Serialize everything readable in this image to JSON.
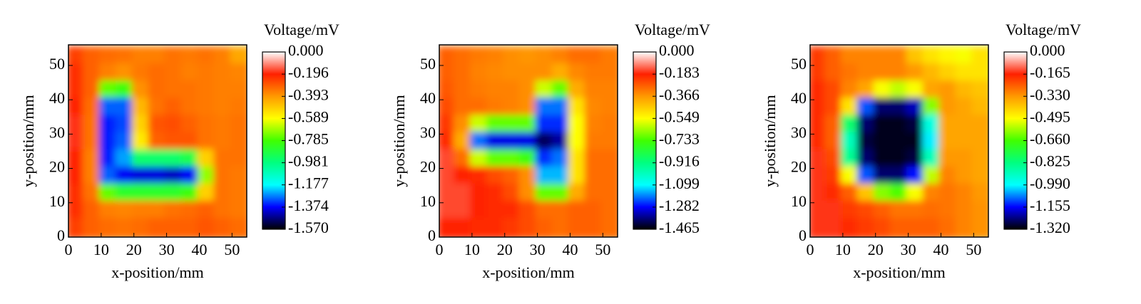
{
  "chart_data": [
    {
      "type": "heatmap",
      "xlabel": "x-position/mm",
      "ylabel": "y-position/mm",
      "colorbar_label": "Voltage/mV",
      "xlim": [
        0,
        54.5
      ],
      "ylim": [
        0,
        56
      ],
      "xticks": [
        0,
        10,
        20,
        30,
        40,
        50
      ],
      "yticks": [
        0,
        10,
        20,
        30,
        40,
        50
      ],
      "zlim": [
        -1.57,
        0
      ],
      "zticks": [
        {
          "value": 0,
          "label": "0.000"
        },
        -0.196,
        -0.393,
        -0.589,
        -0.785,
        -0.981,
        -1.177,
        -1.374,
        {
          "value": -1.57,
          "label": "-1.570"
        }
      ],
      "colormap": [
        "#000000",
        "#0000ff",
        "#00ffff",
        "#00ff80",
        "#40ff00",
        "#ffff00",
        "#ff9900",
        "#ff2000",
        "#ffffff"
      ],
      "x": [
        2.5,
        7.5,
        12.5,
        17.5,
        22.5,
        27.5,
        32.5,
        37.5,
        42.5,
        47.5,
        52.5
      ],
      "y": [
        52.5,
        47.5,
        42.5,
        37.5,
        32.5,
        27.5,
        22.5,
        17.5,
        12.5,
        7.5,
        2.5
      ],
      "z": [
        [
          -0.25,
          -0.3,
          -0.32,
          -0.33,
          -0.35,
          -0.35,
          -0.33,
          -0.34,
          -0.33,
          -0.35,
          -0.42
        ],
        [
          -0.22,
          -0.3,
          -0.35,
          -0.38,
          -0.34,
          -0.32,
          -0.33,
          -0.35,
          -0.34,
          -0.35,
          -0.36
        ],
        [
          -0.22,
          -0.3,
          -0.75,
          -0.8,
          -0.38,
          -0.32,
          -0.33,
          -0.33,
          -0.34,
          -0.35,
          -0.35
        ],
        [
          -0.2,
          -0.32,
          -1.3,
          -1.3,
          -0.45,
          -0.33,
          -0.3,
          -0.33,
          -0.34,
          -0.35,
          -0.34
        ],
        [
          -0.18,
          -0.33,
          -1.35,
          -1.32,
          -0.5,
          -0.28,
          -0.27,
          -0.3,
          -0.33,
          -0.34,
          -0.33
        ],
        [
          -0.18,
          -0.33,
          -1.35,
          -1.3,
          -0.55,
          -0.3,
          -0.28,
          -0.28,
          -0.33,
          -0.34,
          -0.33
        ],
        [
          -0.2,
          -0.35,
          -1.35,
          -1.25,
          -0.95,
          -0.95,
          -0.95,
          -0.9,
          -0.5,
          -0.33,
          -0.33
        ],
        [
          -0.2,
          -0.35,
          -1.3,
          -1.38,
          -1.4,
          -1.4,
          -1.42,
          -1.38,
          -0.7,
          -0.33,
          -0.34
        ],
        [
          -0.22,
          -0.33,
          -0.75,
          -0.85,
          -0.85,
          -0.85,
          -0.85,
          -0.8,
          -0.5,
          -0.33,
          -0.34
        ],
        [
          -0.22,
          -0.3,
          -0.35,
          -0.36,
          -0.35,
          -0.35,
          -0.33,
          -0.32,
          -0.3,
          -0.33,
          -0.34
        ],
        [
          -0.25,
          -0.3,
          -0.32,
          -0.33,
          -0.32,
          -0.3,
          -0.3,
          -0.3,
          -0.28,
          -0.3,
          -0.32
        ]
      ]
    },
    {
      "type": "heatmap",
      "xlabel": "x-position/mm",
      "ylabel": "y-position/mm",
      "colorbar_label": "Voltage/mV",
      "xlim": [
        0,
        54.5
      ],
      "ylim": [
        0,
        56
      ],
      "xticks": [
        0,
        10,
        20,
        30,
        40,
        50
      ],
      "yticks": [
        0,
        10,
        20,
        30,
        40,
        50
      ],
      "zlim": [
        -1.465,
        0
      ],
      "zticks": [
        {
          "value": 0,
          "label": "0.000"
        },
        -0.183,
        -0.366,
        -0.549,
        -0.733,
        -0.916,
        -1.099,
        -1.282,
        -1.465
      ],
      "colormap": [
        "#000000",
        "#0000ff",
        "#00ffff",
        "#00ff80",
        "#40ff00",
        "#ffff00",
        "#ff9900",
        "#ff2000",
        "#ffffff"
      ],
      "x": [
        2.5,
        7.5,
        12.5,
        17.5,
        22.5,
        27.5,
        32.5,
        37.5,
        42.5,
        47.5,
        52.5
      ],
      "y": [
        52.5,
        47.5,
        42.5,
        37.5,
        32.5,
        27.5,
        22.5,
        17.5,
        12.5,
        7.5,
        2.5
      ],
      "z": [
        [
          -0.28,
          -0.3,
          -0.32,
          -0.33,
          -0.35,
          -0.36,
          -0.35,
          -0.33,
          -0.3,
          -0.3,
          -0.32
        ],
        [
          -0.28,
          -0.3,
          -0.33,
          -0.34,
          -0.35,
          -0.35,
          -0.35,
          -0.4,
          -0.34,
          -0.32,
          -0.32
        ],
        [
          -0.27,
          -0.3,
          -0.32,
          -0.33,
          -0.33,
          -0.35,
          -0.6,
          -0.7,
          -0.4,
          -0.33,
          -0.33
        ],
        [
          -0.25,
          -0.3,
          -0.3,
          -0.32,
          -0.33,
          -0.35,
          -1.2,
          -1.2,
          -0.5,
          -0.34,
          -0.33
        ],
        [
          -0.22,
          -0.35,
          -0.6,
          -0.7,
          -0.7,
          -0.7,
          -1.25,
          -1.25,
          -0.55,
          -0.33,
          -0.32
        ],
        [
          -0.2,
          -0.4,
          -1.2,
          -1.3,
          -1.3,
          -1.3,
          -1.4,
          -1.35,
          -0.55,
          -0.32,
          -0.32
        ],
        [
          -0.15,
          -0.3,
          -0.6,
          -0.7,
          -0.7,
          -0.75,
          -1.25,
          -1.2,
          -0.5,
          -0.3,
          -0.3
        ],
        [
          -0.15,
          -0.18,
          -0.2,
          -0.25,
          -0.28,
          -0.35,
          -1.15,
          -1.15,
          -0.5,
          -0.3,
          -0.3
        ],
        [
          -0.15,
          -0.15,
          -0.18,
          -0.2,
          -0.25,
          -0.35,
          -0.7,
          -0.7,
          -0.4,
          -0.3,
          -0.3
        ],
        [
          -0.15,
          -0.15,
          -0.18,
          -0.2,
          -0.2,
          -0.25,
          -0.3,
          -0.3,
          -0.28,
          -0.28,
          -0.3
        ],
        [
          -0.18,
          -0.18,
          -0.2,
          -0.2,
          -0.22,
          -0.25,
          -0.28,
          -0.3,
          -0.28,
          -0.28,
          -0.3
        ]
      ]
    },
    {
      "type": "heatmap",
      "xlabel": "x-position/mm",
      "ylabel": "y-position/mm",
      "colorbar_label": "Voltage/mV",
      "xlim": [
        0,
        54.5
      ],
      "ylim": [
        0,
        56
      ],
      "xticks": [
        0,
        10,
        20,
        30,
        40,
        50
      ],
      "yticks": [
        0,
        10,
        20,
        30,
        40,
        50
      ],
      "zlim": [
        -1.32,
        0
      ],
      "zticks": [
        {
          "value": 0,
          "label": "0.000"
        },
        -0.165,
        {
          "value": -0.33,
          "label": "-0.330"
        },
        -0.495,
        {
          "value": -0.66,
          "label": "-0.660"
        },
        -0.825,
        {
          "value": -0.99,
          "label": "-0.990"
        },
        -1.155,
        {
          "value": -1.32,
          "label": "-1.320"
        }
      ],
      "colormap": [
        "#000000",
        "#0000ff",
        "#00ffff",
        "#00ff80",
        "#40ff00",
        "#ffff00",
        "#ff9900",
        "#ff2000",
        "#ffffff"
      ],
      "x": [
        2.5,
        7.5,
        12.5,
        17.5,
        22.5,
        27.5,
        32.5,
        37.5,
        42.5,
        47.5,
        52.5
      ],
      "y": [
        52.5,
        47.5,
        42.5,
        37.5,
        32.5,
        27.5,
        22.5,
        17.5,
        12.5,
        7.5,
        2.5
      ],
      "z": [
        [
          -0.2,
          -0.25,
          -0.3,
          -0.3,
          -0.3,
          -0.3,
          -0.4,
          -0.45,
          -0.48,
          -0.5,
          -0.45
        ],
        [
          -0.2,
          -0.25,
          -0.28,
          -0.3,
          -0.3,
          -0.3,
          -0.33,
          -0.38,
          -0.42,
          -0.45,
          -0.45
        ],
        [
          -0.18,
          -0.22,
          -0.3,
          -0.35,
          -0.5,
          -0.55,
          -0.5,
          -0.35,
          -0.33,
          -0.38,
          -0.4
        ],
        [
          -0.18,
          -0.22,
          -0.45,
          -1.1,
          -1.25,
          -1.25,
          -1.2,
          -0.6,
          -0.33,
          -0.35,
          -0.38
        ],
        [
          -0.18,
          -0.25,
          -0.8,
          -1.25,
          -1.3,
          -1.3,
          -1.28,
          -0.95,
          -0.35,
          -0.35,
          -0.35
        ],
        [
          -0.18,
          -0.25,
          -0.9,
          -1.28,
          -1.3,
          -1.3,
          -1.3,
          -1.0,
          -0.35,
          -0.35,
          -0.35
        ],
        [
          -0.15,
          -0.22,
          -0.85,
          -1.25,
          -1.3,
          -1.3,
          -1.28,
          -0.9,
          -0.33,
          -0.33,
          -0.35
        ],
        [
          -0.15,
          -0.2,
          -0.5,
          -1.1,
          -1.25,
          -1.25,
          -1.15,
          -0.55,
          -0.3,
          -0.33,
          -0.35
        ],
        [
          -0.15,
          -0.18,
          -0.25,
          -0.4,
          -0.6,
          -0.65,
          -0.5,
          -0.3,
          -0.28,
          -0.3,
          -0.33
        ],
        [
          -0.15,
          -0.15,
          -0.2,
          -0.22,
          -0.25,
          -0.28,
          -0.28,
          -0.27,
          -0.28,
          -0.3,
          -0.32
        ],
        [
          -0.15,
          -0.15,
          -0.18,
          -0.2,
          -0.22,
          -0.25,
          -0.25,
          -0.25,
          -0.27,
          -0.3,
          -0.32
        ]
      ]
    }
  ]
}
